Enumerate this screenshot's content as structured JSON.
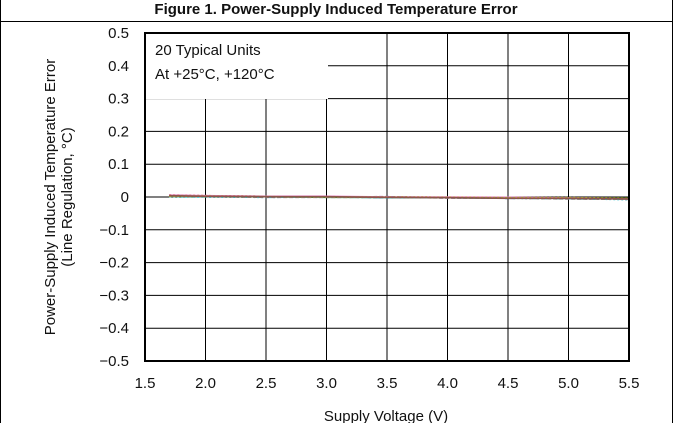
{
  "chart_data": {
    "type": "line",
    "title": "Figure 1. Power-Supply Induced Temperature Error",
    "xlabel": "Supply Voltage (V)",
    "ylabel_line1": "Power-Supply Induced Temperature Error",
    "ylabel_line2": "(Line Regulation, °C)",
    "xlim": [
      1.5,
      5.5
    ],
    "ylim": [
      -0.5,
      0.5
    ],
    "x_ticks": [
      1.5,
      2.0,
      2.5,
      3.0,
      3.5,
      4.0,
      4.5,
      5.0,
      5.5
    ],
    "x_tick_labels": [
      "1.5",
      "2.0",
      "2.5",
      "3.0",
      "3.5",
      "4.0",
      "4.5",
      "5.0",
      "5.5"
    ],
    "y_ticks": [
      0.5,
      0.4,
      0.3,
      0.2,
      0.1,
      0,
      -0.1,
      -0.2,
      -0.3,
      -0.4,
      -0.5
    ],
    "y_tick_labels": [
      "0.5",
      "0.4",
      "0.3",
      "0.2",
      "0.1",
      "0",
      "−0.1",
      "−0.2",
      "−0.3",
      "−0.4",
      "−0.5"
    ],
    "grid": true,
    "annotation_lines": [
      "20 Typical Units",
      "At +25°C, +120°C"
    ],
    "annotation_position": "top-left",
    "series_colors": [
      "#000000",
      "#1f77b4",
      "#d62728",
      "#2ca02c",
      "#9467bd",
      "#17becf",
      "#e377c2",
      "#7f7f7f",
      "#bcbd22",
      "#8c564b"
    ],
    "x": [
      1.7,
      2.0,
      2.5,
      3.0,
      3.5,
      4.0,
      4.5,
      5.0,
      5.5
    ],
    "series": [
      {
        "values": [
          0.005,
          0.003,
          0.001,
          0.0,
          -0.001,
          -0.002,
          -0.003,
          -0.004,
          -0.006
        ]
      },
      {
        "values": [
          0.003,
          0.002,
          0.0,
          0.001,
          -0.002,
          -0.001,
          -0.004,
          -0.003,
          -0.005
        ]
      },
      {
        "values": [
          0.006,
          0.004,
          0.002,
          0.001,
          0.0,
          -0.001,
          -0.002,
          -0.005,
          -0.007
        ]
      },
      {
        "values": [
          0.002,
          0.001,
          0.001,
          -0.001,
          -0.001,
          -0.002,
          -0.003,
          -0.003,
          -0.004
        ]
      },
      {
        "values": [
          0.004,
          0.002,
          0.0,
          0.0,
          0.001,
          -0.003,
          -0.002,
          -0.004,
          -0.006
        ]
      },
      {
        "values": [
          0.001,
          0.0,
          -0.001,
          0.0,
          -0.002,
          -0.002,
          -0.004,
          -0.005,
          -0.008
        ]
      },
      {
        "values": [
          0.005,
          0.004,
          0.002,
          0.002,
          0.0,
          0.0,
          -0.001,
          -0.003,
          -0.005
        ]
      },
      {
        "values": [
          0.003,
          0.001,
          -0.001,
          -0.001,
          -0.001,
          -0.003,
          -0.003,
          -0.006,
          -0.007
        ]
      },
      {
        "values": [
          0.002,
          0.003,
          0.001,
          0.0,
          0.0,
          -0.001,
          -0.002,
          -0.002,
          -0.004
        ]
      },
      {
        "values": [
          0.004,
          0.002,
          0.001,
          0.001,
          -0.001,
          -0.002,
          -0.004,
          -0.004,
          -0.006
        ]
      }
    ]
  }
}
